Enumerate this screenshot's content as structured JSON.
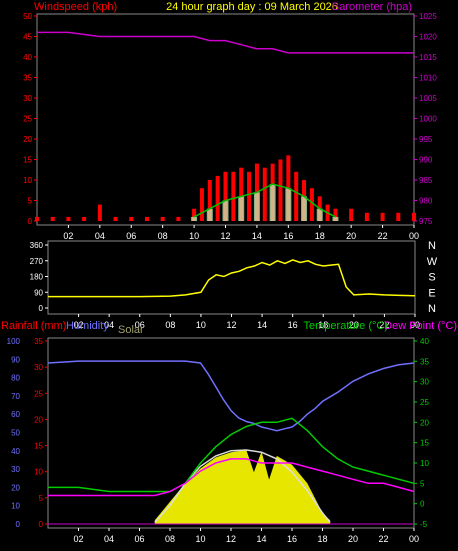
{
  "chart_data": [
    {
      "type": "bar",
      "title": "24 hour graph day : 09 March 2026",
      "ylabel_left": "Windspeed (kph)",
      "ylabel_right": "Barometer (hpa)",
      "ylim_left": [
        0,
        50
      ],
      "ylim_right": [
        975,
        1025
      ],
      "yticks_left": [
        "0",
        "5",
        "10",
        "15",
        "20",
        "25",
        "30",
        "35",
        "40",
        "45",
        "50"
      ],
      "yticks_right": [
        "975",
        "980",
        "985",
        "990",
        "995",
        "1000",
        "1005",
        "1010",
        "1015",
        "1020",
        "1025"
      ],
      "xticks": [
        "02",
        "04",
        "06",
        "08",
        "10",
        "12",
        "14",
        "16",
        "18",
        "20",
        "22",
        "00"
      ],
      "series": [
        {
          "name": "Windspeed (kph)",
          "color": "#ff0000",
          "hours": [
            0,
            1,
            2,
            3,
            4,
            5,
            6,
            7,
            8,
            9,
            10,
            10.5,
            11,
            11.5,
            12,
            12.5,
            13,
            13.5,
            14,
            14.5,
            15,
            15.5,
            16,
            16.5,
            17,
            17.5,
            18,
            18.5,
            19,
            20,
            21,
            22,
            23,
            24
          ],
          "values": [
            1,
            1,
            1,
            1,
            4,
            1,
            1,
            1,
            1,
            1,
            3,
            8,
            10,
            11,
            12,
            12,
            13,
            12,
            14,
            13,
            14,
            15,
            16,
            12,
            10,
            8,
            6,
            4,
            3,
            3,
            2,
            2,
            2,
            2
          ]
        },
        {
          "name": "Gust",
          "color": "#00c000",
          "hours": [
            10,
            11,
            12,
            13,
            14,
            15,
            16,
            17,
            18,
            19
          ],
          "values": [
            1,
            3,
            5,
            6,
            7,
            9,
            8,
            6,
            3,
            1
          ]
        },
        {
          "name": "Barometer (hpa)",
          "color": "#cc00cc",
          "hours": [
            0,
            2,
            4,
            6,
            8,
            9,
            10,
            11,
            12,
            13,
            14,
            15,
            16,
            17,
            18,
            19,
            20,
            21,
            22,
            23,
            24
          ],
          "values": [
            1021,
            1021,
            1020,
            1020,
            1020,
            1020,
            1020,
            1019,
            1019,
            1018,
            1017,
            1017,
            1016,
            1016,
            1016,
            1016,
            1016,
            1016,
            1016,
            1016,
            1016
          ]
        }
      ]
    },
    {
      "type": "scatter",
      "ylabel": "",
      "ylim": [
        0,
        360
      ],
      "yticks": [
        "0",
        "90",
        "180",
        "270",
        "360"
      ],
      "compass": [
        "N",
        "W",
        "S",
        "E",
        "N"
      ],
      "xticks": [
        "02",
        "04",
        "06",
        "08",
        "10",
        "12",
        "14",
        "16",
        "18",
        "20",
        "22",
        "00"
      ],
      "series": [
        {
          "name": "Wind direction",
          "color": "#ffff00",
          "hours": [
            0,
            2,
            4,
            6,
            8,
            9,
            10,
            10.5,
            11,
            11.5,
            12,
            12.5,
            13,
            13.5,
            14,
            14.5,
            15,
            15.5,
            16,
            16.5,
            17,
            17.5,
            18,
            18.5,
            19,
            19.5,
            20,
            21,
            22,
            23,
            24
          ],
          "values": [
            65,
            65,
            65,
            65,
            68,
            75,
            90,
            160,
            190,
            180,
            200,
            210,
            230,
            240,
            260,
            245,
            270,
            255,
            275,
            260,
            270,
            250,
            240,
            245,
            250,
            120,
            75,
            80,
            75,
            72,
            70
          ]
        }
      ]
    },
    {
      "type": "line",
      "ylabel_left_rain": "Rainfall (mm)",
      "ylabel_left_humidity": "Humidity",
      "label_solar": "Solar",
      "ylabel_right_temp": "Temperature (°C)",
      "ylabel_right_dew": "Dew Point (°C)",
      "ylim_humidity": [
        0,
        100
      ],
      "ylim_rain": [
        0,
        35
      ],
      "ylim_temp": [
        -5,
        40
      ],
      "yticks_humidity": [
        "0",
        "10",
        "20",
        "30",
        "40",
        "50",
        "60",
        "70",
        "80",
        "90",
        "100"
      ],
      "yticks_rain": [
        "0",
        "5",
        "10",
        "15",
        "20",
        "25",
        "30",
        "35"
      ],
      "yticks_temp": [
        "-5",
        "0",
        "5",
        "10",
        "15",
        "20",
        "25",
        "30",
        "35",
        "40"
      ],
      "xticks": [
        "02",
        "04",
        "06",
        "08",
        "10",
        "12",
        "14",
        "16",
        "18",
        "20",
        "22",
        "00"
      ],
      "series": [
        {
          "name": "Humidity",
          "color": "#7070ff",
          "axis": "humidity",
          "hours": [
            0,
            2,
            4,
            6,
            8,
            9,
            10,
            10.5,
            11,
            11.5,
            12,
            12.5,
            13,
            13.5,
            14,
            14.5,
            15,
            15.5,
            16,
            16.5,
            17,
            17.5,
            18,
            19,
            20,
            21,
            22,
            23,
            24
          ],
          "values": [
            88,
            89,
            89,
            89,
            89,
            89,
            88,
            82,
            75,
            68,
            62,
            58,
            56,
            55,
            53,
            52,
            51,
            52,
            53,
            56,
            60,
            63,
            67,
            72,
            78,
            82,
            85,
            87,
            88
          ]
        },
        {
          "name": "Temperature (°C)",
          "color": "#00cc00",
          "axis": "temp",
          "hours": [
            0,
            2,
            4,
            6,
            7,
            8,
            9,
            10,
            11,
            12,
            13,
            14,
            15,
            16,
            17,
            18,
            19,
            20,
            21,
            22,
            23,
            24
          ],
          "values": [
            4,
            4,
            3,
            3,
            3,
            3,
            5,
            10,
            14,
            17,
            19,
            20,
            20,
            21,
            18,
            14,
            11,
            9,
            8,
            7,
            6,
            5
          ]
        },
        {
          "name": "Dew Point (°C)",
          "color": "#ff00ff",
          "axis": "temp",
          "hours": [
            0,
            2,
            4,
            6,
            7,
            8,
            9,
            10,
            11,
            12,
            13,
            14,
            15,
            16,
            17,
            18,
            19,
            20,
            21,
            22,
            23,
            24
          ],
          "values": [
            2,
            2,
            2,
            2,
            2,
            3,
            5,
            8,
            10,
            11,
            11,
            10,
            10,
            10,
            9,
            8,
            7,
            6,
            5,
            5,
            4,
            3
          ]
        },
        {
          "name": "Solar",
          "color": "#ffff00",
          "axis": "solar",
          "hours": [
            7,
            8,
            9,
            10,
            11,
            12,
            13,
            13.5,
            14,
            14.5,
            15,
            16,
            17,
            18,
            18.5
          ],
          "values": [
            0.05,
            0.3,
            0.55,
            0.75,
            0.9,
            0.97,
            1.0,
            0.7,
            0.98,
            0.6,
            0.92,
            0.8,
            0.55,
            0.15,
            0.05
          ]
        },
        {
          "name": "Solar max",
          "color": "#dddddd",
          "axis": "solar",
          "hours": [
            7,
            8,
            9,
            10,
            11,
            12,
            13,
            14,
            15,
            16,
            17,
            18,
            18.5
          ],
          "values": [
            0.02,
            0.25,
            0.55,
            0.78,
            0.92,
            0.99,
            1.0,
            0.97,
            0.88,
            0.7,
            0.45,
            0.15,
            0.02
          ]
        }
      ]
    }
  ]
}
